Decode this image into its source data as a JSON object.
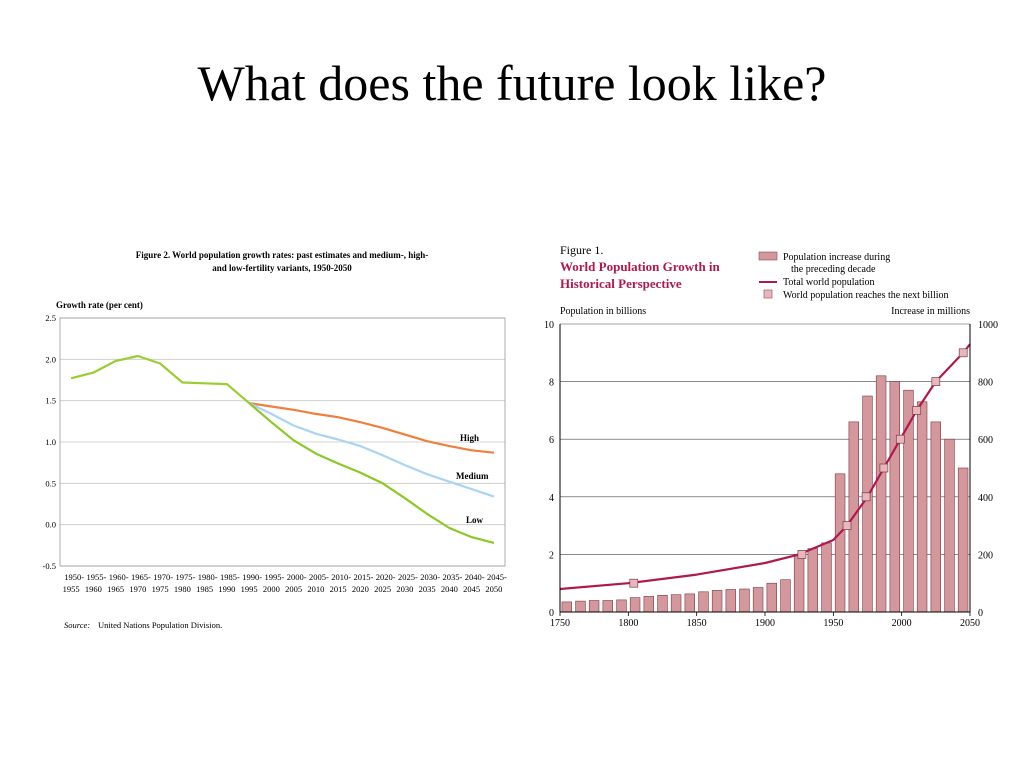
{
  "slide": {
    "title": "What does the future look like?"
  },
  "chart_data": [
    {
      "type": "line",
      "title": "Figure 2.  World population growth rates: past estimates and medium-, high-",
      "title_line2": "and low-fertility variants, 1950-2050",
      "ylabel": "Growth rate (per cent)",
      "ylim": [
        -0.5,
        2.5
      ],
      "yticks": [
        "2.5",
        "2.0",
        "1.5",
        "1.0",
        "0.5",
        "0.0",
        "-0.5"
      ],
      "grid": true,
      "categories_top": [
        "1950-",
        "1955-",
        "1960-",
        "1965-",
        "1970-",
        "1975-",
        "1980-",
        "1985-",
        "1990-",
        "1995-",
        "2000-",
        "2005-",
        "2010-",
        "2015-",
        "2020-",
        "2025-",
        "2030-",
        "2035-",
        "2040-",
        "2045-"
      ],
      "categories_bottom": [
        "1955",
        "1960",
        "1965",
        "1970",
        "1975",
        "1980",
        "1985",
        "1990",
        "1995",
        "2000",
        "2005",
        "2010",
        "2015",
        "2020",
        "2025",
        "2030",
        "2035",
        "2040",
        "2045",
        "2050"
      ],
      "series": [
        {
          "name": "",
          "color": "#9acd32",
          "start_index": 0,
          "values": [
            1.77,
            1.84,
            1.98,
            2.04,
            1.95,
            1.72,
            1.71,
            1.7,
            1.47
          ]
        },
        {
          "name": "High",
          "color": "#f07f3c",
          "start_index": 8,
          "values": [
            1.47,
            1.43,
            1.39,
            1.34,
            1.3,
            1.24,
            1.17,
            1.09,
            1.01,
            0.95,
            0.9,
            0.87
          ]
        },
        {
          "name": "Medium",
          "color": "#a9d4f2",
          "start_index": 8,
          "values": [
            1.47,
            1.34,
            1.2,
            1.1,
            1.03,
            0.95,
            0.84,
            0.72,
            0.61,
            0.52,
            0.43,
            0.34
          ]
        },
        {
          "name": "Low",
          "color": "#8ac926",
          "start_index": 8,
          "values": [
            1.47,
            1.24,
            1.02,
            0.86,
            0.74,
            0.63,
            0.5,
            0.32,
            0.13,
            -0.04,
            -0.15,
            -0.22
          ]
        }
      ],
      "source_label": "Source:",
      "source_text": "United Nations Population Division."
    },
    {
      "type": "bar",
      "figure_label": "Figure 1.",
      "title_line1": "World Population Growth in",
      "title_line2": "Historical Perspective",
      "ylabel_left": "Population in billions",
      "ylabel_right": "Increase in millions",
      "ylim_left": [
        0,
        10
      ],
      "ylim_right": [
        0,
        1000
      ],
      "yticks_left": [
        "10",
        "8",
        "6",
        "4",
        "2",
        "0"
      ],
      "yticks_right": [
        "1000",
        "800",
        "600",
        "400",
        "200",
        "0"
      ],
      "xlim": [
        1750,
        2050
      ],
      "xticks": [
        "1750",
        "1800",
        "1850",
        "1900",
        "1950",
        "2000",
        "2050"
      ],
      "legend": {
        "bars_line1": "Population increase during",
        "bars_line2": "the preceding decade",
        "line": "Total world population",
        "markers": "World population reaches the next billion"
      },
      "bars": {
        "name": "Population increase during the preceding decade",
        "color": "#d4979c",
        "x": [
          1760,
          1770,
          1780,
          1790,
          1800,
          1810,
          1820,
          1830,
          1840,
          1850,
          1860,
          1870,
          1880,
          1890,
          1900,
          1910,
          1920,
          1930,
          1940,
          1950,
          1960,
          1970,
          1980,
          1990,
          2000,
          2010,
          2020,
          2030,
          2040,
          2050
        ],
        "values": [
          35,
          38,
          40,
          40,
          42,
          50,
          54,
          58,
          60,
          63,
          70,
          75,
          78,
          80,
          85,
          100,
          112,
          200,
          220,
          240,
          480,
          660,
          750,
          820,
          800,
          770,
          730,
          660,
          600,
          500
        ]
      },
      "line": {
        "name": "Total world population",
        "color": "#b0184e",
        "x": [
          1750,
          1800,
          1850,
          1900,
          1925,
          1950,
          1960,
          1975,
          1987,
          1999,
          2011,
          2025,
          2045,
          2050
        ],
        "values": [
          0.8,
          1.0,
          1.3,
          1.7,
          2.0,
          2.5,
          3.0,
          4.0,
          5.0,
          6.0,
          7.0,
          8.0,
          9.0,
          9.3
        ]
      },
      "markers": {
        "name": "World population reaches the next billion",
        "color": "#e9b6bd",
        "x": [
          1804,
          1927,
          1960,
          1974,
          1987,
          1999,
          2011,
          2025,
          2045
        ],
        "values": [
          1,
          2,
          3,
          4,
          5,
          6,
          7,
          8,
          9
        ]
      }
    }
  ]
}
